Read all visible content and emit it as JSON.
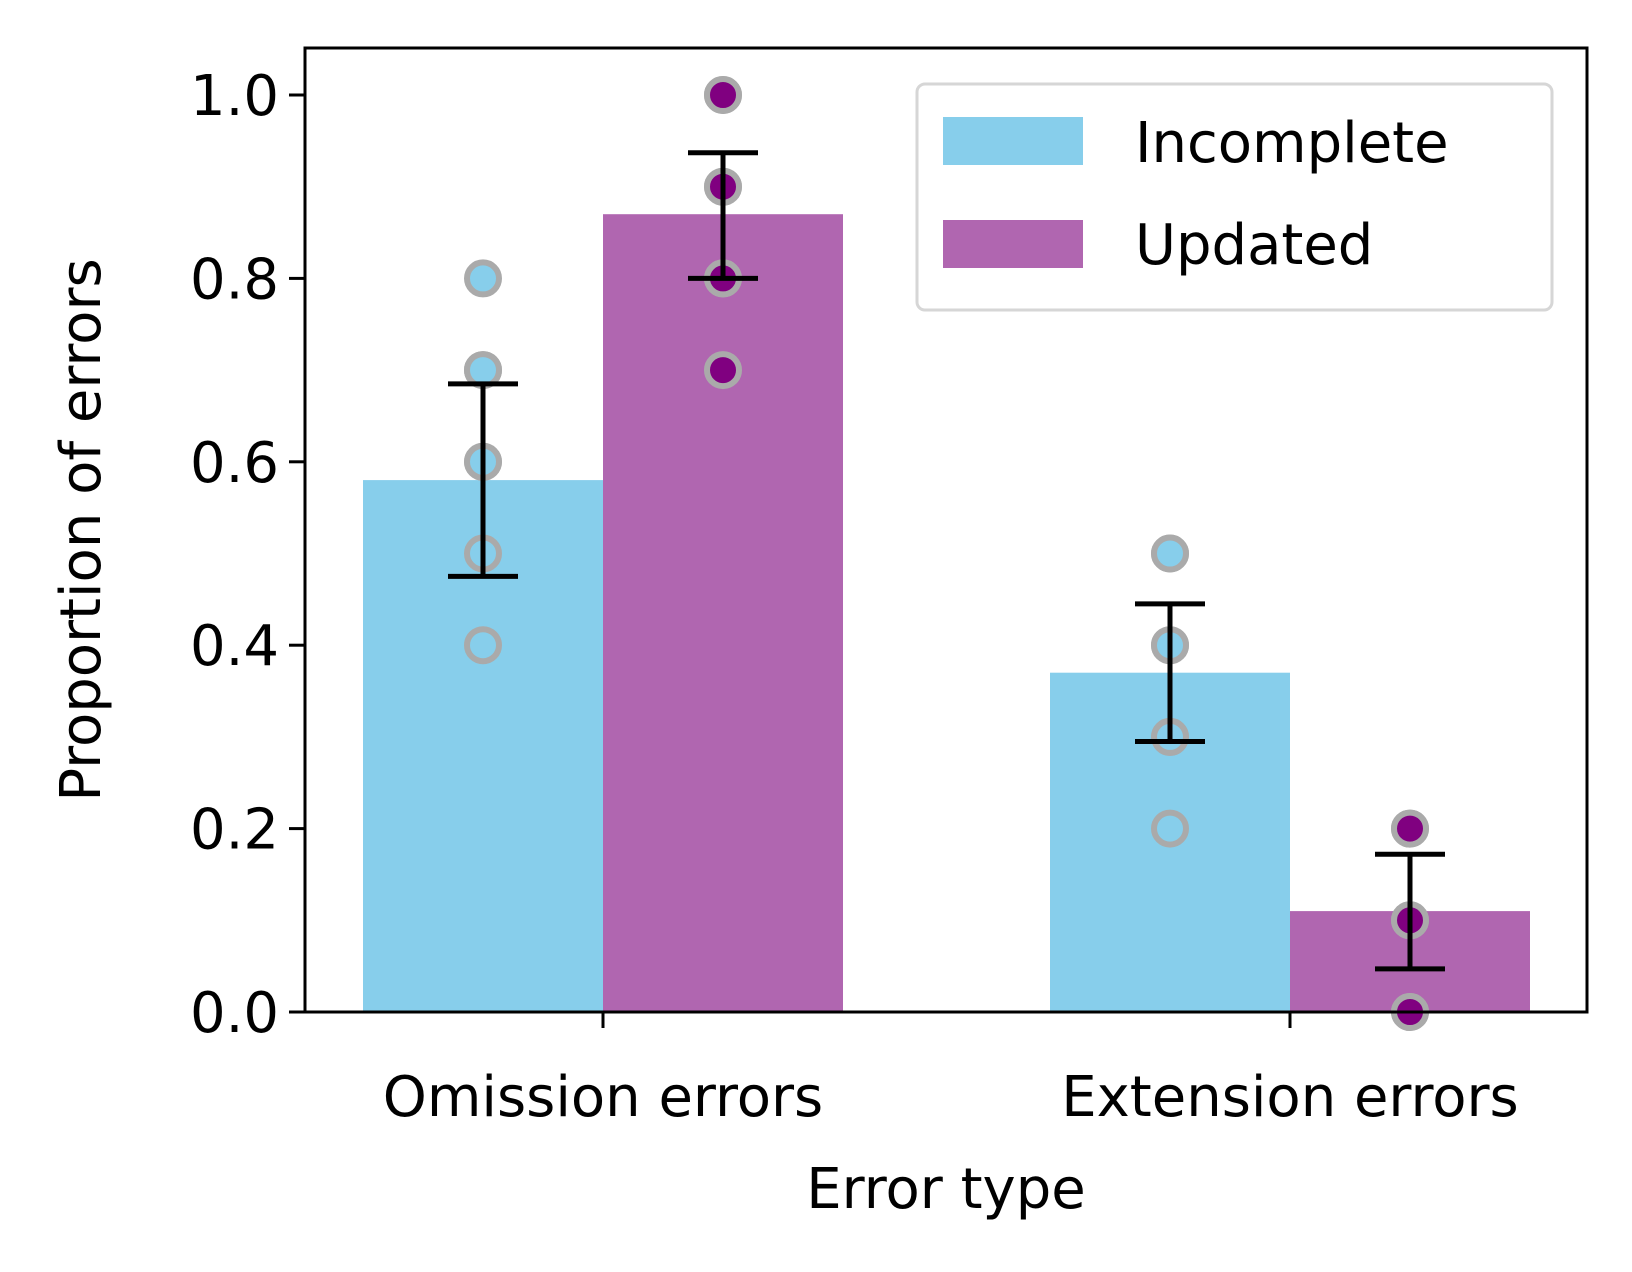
{
  "chart_data": {
    "type": "bar",
    "title": "",
    "xlabel": "Error type",
    "ylabel": "Proportion of errors",
    "categories": [
      "Omission errors",
      "Extension errors"
    ],
    "ylim": [
      0,
      1.05
    ],
    "yticks": [
      0.0,
      0.2,
      0.4,
      0.6,
      0.8,
      1.0
    ],
    "ytick_labels": [
      "0.0",
      "0.2",
      "0.4",
      "0.6",
      "0.8",
      "1.0"
    ],
    "legend_position": "top-right",
    "series": [
      {
        "name": "Incomplete",
        "color": "#87ceeb",
        "point_color": "#87ceeb",
        "values": [
          0.58,
          0.37
        ],
        "error_low": [
          0.475,
          0.295
        ],
        "error_high": [
          0.685,
          0.445
        ],
        "points": [
          [
            0.4,
            0.5,
            0.6,
            0.6,
            0.7,
            0.7,
            0.8
          ],
          [
            0.2,
            0.3,
            0.3,
            0.4,
            0.4,
            0.5,
            0.5
          ]
        ]
      },
      {
        "name": "Updated",
        "color": "#b066b0",
        "point_color": "#800080",
        "values": [
          0.87,
          0.11
        ],
        "error_low": [
          0.8,
          0.047
        ],
        "error_high": [
          0.937,
          0.172
        ],
        "points": [
          [
            0.7,
            0.8,
            0.8,
            0.9,
            0.9,
            1.0,
            1.0
          ],
          [
            0.0,
            0.0,
            0.1,
            0.1,
            0.2,
            0.2
          ]
        ]
      }
    ]
  }
}
